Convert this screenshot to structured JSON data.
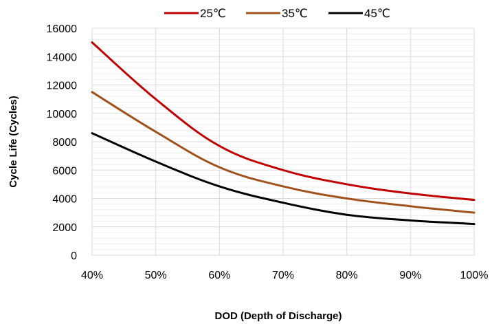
{
  "chart_data": {
    "type": "line",
    "title": "",
    "xlabel": "DOD (Depth of Discharge)",
    "ylabel": "Cycle Life (Cycles)",
    "x": [
      40,
      50,
      60,
      70,
      80,
      90,
      100
    ],
    "x_tick_labels": [
      "40%",
      "50%",
      "60%",
      "70%",
      "80%",
      "90%",
      "100%"
    ],
    "xlim": [
      40,
      100
    ],
    "y_ticks": [
      0,
      2000,
      4000,
      6000,
      8000,
      10000,
      12000,
      14000,
      16000
    ],
    "y_tick_labels": [
      "0",
      "2000",
      "4000",
      "6000",
      "8000",
      "10000",
      "12000",
      "14000",
      "16000"
    ],
    "ylim": [
      0,
      16000
    ],
    "grid": true,
    "legend_position": "top",
    "series": [
      {
        "name": "25℃",
        "color": "#c00000",
        "values": [
          15000,
          11000,
          7700,
          6000,
          5000,
          4350,
          3900
        ]
      },
      {
        "name": "35℃",
        "color": "#a0521d",
        "values": [
          11500,
          8700,
          6200,
          4850,
          4000,
          3450,
          3000
        ]
      },
      {
        "name": "45℃",
        "color": "#000000",
        "values": [
          8600,
          6600,
          4850,
          3700,
          2850,
          2450,
          2200
        ]
      }
    ]
  }
}
